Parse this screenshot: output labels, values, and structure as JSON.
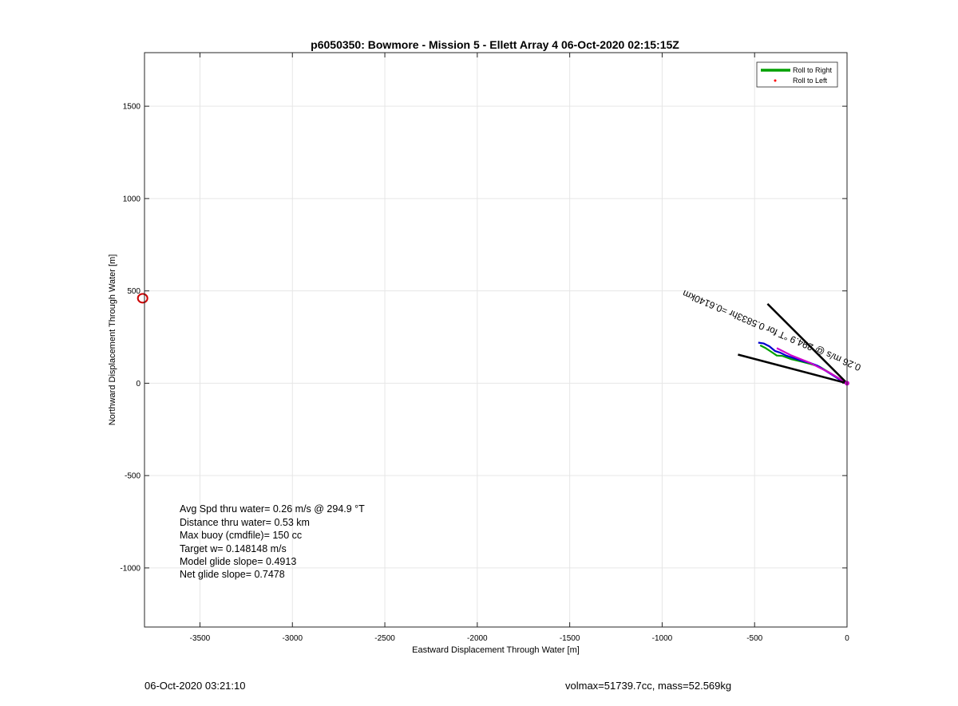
{
  "chart_data": {
    "type": "line",
    "title": "p6050350: Bowmore - Mission 5 - Ellett Array 4 06-Oct-2020 02:15:15Z",
    "xlabel": "Eastward Displacement Through Water [m]",
    "ylabel": "Northward Displacement Through Water [m]",
    "xlim": [
      -3800,
      0
    ],
    "ylim": [
      -1320,
      1790
    ],
    "xticks": [
      -3500,
      -3000,
      -2500,
      -2000,
      -1500,
      -1000,
      -500,
      0
    ],
    "yticks": [
      -1000,
      -500,
      0,
      500,
      1000,
      1500
    ],
    "grid": true,
    "legend": {
      "position": "top-right",
      "entries": [
        {
          "label": "Roll to Right",
          "color": "#00a000",
          "marker": "line"
        },
        {
          "label": "Roll to Left",
          "color": "#ff0000",
          "marker": "dot"
        }
      ]
    },
    "series": [
      {
        "name": "Roll to Right",
        "color": "#00a000",
        "x": [
          -470,
          -440,
          -410,
          -380,
          -350,
          -300,
          -250,
          -200,
          -150,
          -100,
          -50,
          0
        ],
        "y": [
          205,
          190,
          170,
          150,
          148,
          130,
          118,
          105,
          90,
          60,
          30,
          0
        ]
      },
      {
        "color": "#0000cc",
        "x": [
          -480,
          -450,
          -420,
          -390,
          -360,
          -330,
          -300,
          -270,
          -240,
          -200,
          -160,
          -120,
          -80,
          -40,
          0
        ],
        "y": [
          220,
          215,
          200,
          175,
          165,
          150,
          140,
          130,
          120,
          110,
          95,
          70,
          45,
          20,
          0
        ]
      },
      {
        "color": "#cc00cc",
        "x": [
          -380,
          -300,
          -200,
          -100,
          0
        ],
        "y": [
          190,
          150,
          110,
          60,
          0
        ]
      },
      {
        "color": "#000000",
        "x": [
          -430,
          0
        ],
        "y": [
          430,
          0
        ]
      },
      {
        "color": "#000000",
        "x": [
          -590,
          0
        ],
        "y": [
          155,
          0
        ]
      }
    ],
    "markers": [
      {
        "x": -3810,
        "y": 460,
        "shape": "circle",
        "color": "#cc0000"
      }
    ],
    "annotations": [
      {
        "text": "0.26 m/s @ 294.9 °T for 0.5833hr =0.6140km",
        "x": -880,
        "y": 505,
        "rotation_deg": 23,
        "color": "#000000"
      }
    ],
    "stats": [
      "Avg Spd thru water=  0.26 m/s @ 294.9 °T",
      "Distance thru water=  0.53 km",
      "Max buoy (cmdfile)= 150 cc",
      "Target w= 0.148148 m/s",
      "Model glide slope= 0.4913",
      "Net glide slope= 0.7478"
    ]
  },
  "footer": {
    "left": "06-Oct-2020 03:21:10",
    "right": "volmax=51739.7cc, mass=52.569kg"
  }
}
